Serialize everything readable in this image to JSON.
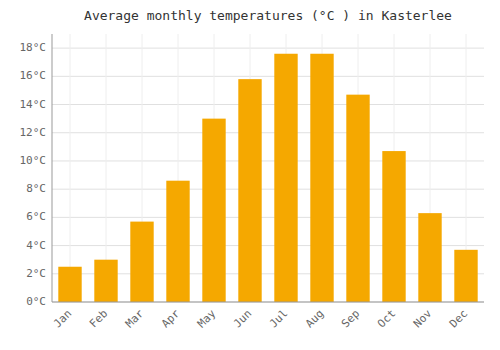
{
  "chart_data": {
    "type": "bar",
    "title": "Average monthly temperatures (°C ) in Kasterlee",
    "categories": [
      "Jan",
      "Feb",
      "Mar",
      "Apr",
      "May",
      "Jun",
      "Jul",
      "Aug",
      "Sep",
      "Oct",
      "Nov",
      "Dec"
    ],
    "values": [
      2.5,
      3.0,
      5.7,
      8.6,
      13.0,
      15.8,
      17.6,
      17.6,
      14.7,
      10.7,
      6.3,
      3.7
    ],
    "color": "#F5A800",
    "ylim": [
      0,
      19
    ],
    "yticks": [
      {
        "value": 0,
        "label": "0°C"
      },
      {
        "value": 2,
        "label": "2°C"
      },
      {
        "value": 4,
        "label": "4°C"
      },
      {
        "value": 6,
        "label": "6°C"
      },
      {
        "value": 8,
        "label": "8°C"
      },
      {
        "value": 10,
        "label": "10°C"
      },
      {
        "value": 12,
        "label": "12°C"
      },
      {
        "value": 14,
        "label": "14°C"
      },
      {
        "value": 16,
        "label": "16°C"
      },
      {
        "value": 18,
        "label": "18°C"
      }
    ],
    "grid": true
  }
}
